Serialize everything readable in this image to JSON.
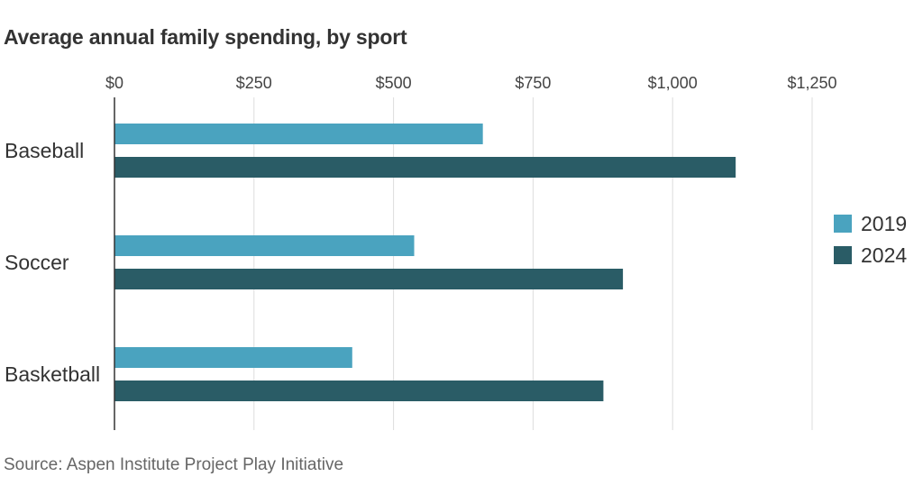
{
  "title": "Average annual family spending, by sport",
  "source": "Source: Aspen Institute Project Play Initiative",
  "colors": {
    "series_2019": "#4aa3bf",
    "series_2024": "#2a5c66",
    "grid": "#dddddd",
    "axis": "#333333"
  },
  "chart_data": {
    "type": "bar",
    "orientation": "horizontal",
    "title": "Average annual family spending, by sport",
    "categories": [
      "Baseball",
      "Soccer",
      "Basketball"
    ],
    "series": [
      {
        "name": "2019",
        "values": [
          660,
          537,
          426
        ]
      },
      {
        "name": "2024",
        "values": [
          1113,
          911,
          876
        ]
      }
    ],
    "xlim": [
      0,
      1250
    ],
    "xticks": [
      0,
      250,
      500,
      750,
      1000,
      1250
    ],
    "xtick_labels": [
      "$0",
      "$250",
      "$500",
      "$750",
      "$1,000",
      "$1,250"
    ],
    "tick_position": "top",
    "grid": true,
    "legend_position": "right"
  }
}
